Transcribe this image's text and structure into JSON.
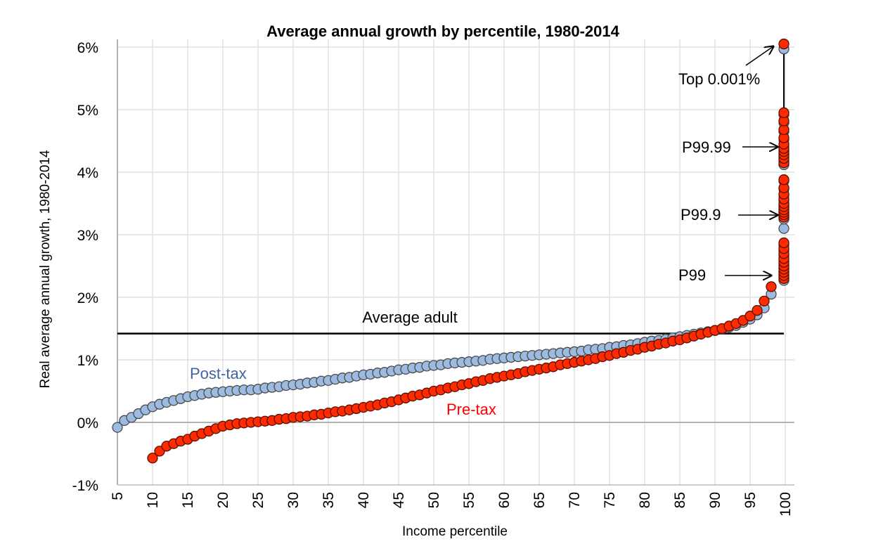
{
  "chart_data": {
    "type": "scatter",
    "title": "Average annual growth by percentile, 1980-2014",
    "xlabel": "Income percentile",
    "ylabel": "Real average annual growth, 1980-2014",
    "xlim": [
      5,
      100
    ],
    "ylim": [
      -1,
      6
    ],
    "grid": true,
    "x_ticks": [
      "5",
      "10",
      "15",
      "20",
      "25",
      "30",
      "35",
      "40",
      "45",
      "50",
      "55",
      "60",
      "65",
      "70",
      "75",
      "80",
      "85",
      "90",
      "95",
      "100"
    ],
    "y_ticks": [
      "-1%",
      "0%",
      "1%",
      "2%",
      "3%",
      "4%",
      "5%",
      "6%"
    ],
    "colors": {
      "post_tax": "#9dbbe0",
      "pre_tax": "#ff2a00",
      "post_tax_label": "#3f64a0",
      "pre_tax_label": "#ff0000"
    },
    "series": [
      {
        "name": "Post-tax",
        "x_start": 5,
        "values": [
          -0.08,
          0.03,
          0.08,
          0.14,
          0.2,
          0.25,
          0.29,
          0.32,
          0.35,
          0.38,
          0.41,
          0.43,
          0.45,
          0.47,
          0.48,
          0.49,
          0.5,
          0.51,
          0.52,
          0.52,
          0.53,
          0.55,
          0.56,
          0.57,
          0.59,
          0.6,
          0.61,
          0.63,
          0.64,
          0.66,
          0.67,
          0.69,
          0.71,
          0.72,
          0.74,
          0.76,
          0.77,
          0.79,
          0.8,
          0.82,
          0.84,
          0.85,
          0.87,
          0.88,
          0.9,
          0.91,
          0.92,
          0.94,
          0.95,
          0.96,
          0.97,
          0.98,
          0.99,
          1.01,
          1.02,
          1.03,
          1.04,
          1.05,
          1.06,
          1.07,
          1.08,
          1.09,
          1.1,
          1.11,
          1.12,
          1.13,
          1.14,
          1.16,
          1.17,
          1.18,
          1.2,
          1.21,
          1.23,
          1.24,
          1.26,
          1.28,
          1.3,
          1.31,
          1.33,
          1.35,
          1.37,
          1.39,
          1.41,
          1.43,
          1.45,
          1.47,
          1.49,
          1.52,
          1.55,
          1.6,
          1.65,
          1.72,
          1.83,
          2.05
        ],
        "top_fractiles": [
          2.27,
          2.32,
          2.37,
          2.42,
          2.47,
          2.53,
          2.59,
          2.67,
          2.75,
          2.84,
          3.1,
          3.25,
          3.3,
          3.34,
          3.38,
          3.43,
          3.48,
          3.55,
          3.63,
          3.73,
          3.86,
          4.12,
          4.19,
          4.25,
          4.3,
          4.35,
          4.42,
          4.52,
          4.65,
          4.79,
          4.92,
          5.97
        ]
      },
      {
        "name": "Pre-tax",
        "x_start": 10,
        "values": [
          -0.57,
          -0.46,
          -0.38,
          -0.34,
          -0.3,
          -0.27,
          -0.22,
          -0.18,
          -0.14,
          -0.1,
          -0.06,
          -0.04,
          -0.02,
          -0.01,
          0.0,
          0.01,
          0.02,
          0.03,
          0.05,
          0.06,
          0.08,
          0.09,
          0.1,
          0.12,
          0.13,
          0.15,
          0.17,
          0.18,
          0.2,
          0.22,
          0.24,
          0.26,
          0.28,
          0.31,
          0.33,
          0.36,
          0.39,
          0.42,
          0.44,
          0.47,
          0.5,
          0.52,
          0.55,
          0.57,
          0.6,
          0.62,
          0.65,
          0.67,
          0.7,
          0.72,
          0.74,
          0.76,
          0.78,
          0.81,
          0.83,
          0.85,
          0.87,
          0.89,
          0.92,
          0.94,
          0.96,
          0.98,
          1.0,
          1.02,
          1.05,
          1.07,
          1.1,
          1.12,
          1.15,
          1.17,
          1.2,
          1.22,
          1.25,
          1.27,
          1.3,
          1.32,
          1.35,
          1.38,
          1.41,
          1.44,
          1.47,
          1.5,
          1.54,
          1.58,
          1.63,
          1.7,
          1.79,
          1.94,
          2.17
        ],
        "top_fractiles": [
          2.3,
          2.35,
          2.4,
          2.45,
          2.5,
          2.56,
          2.62,
          2.7,
          2.78,
          2.87,
          3.28,
          3.32,
          3.36,
          3.4,
          3.45,
          3.5,
          3.57,
          3.65,
          3.75,
          3.88,
          4.15,
          4.22,
          4.28,
          4.33,
          4.38,
          4.45,
          4.55,
          4.68,
          4.82,
          4.95,
          6.05
        ]
      }
    ],
    "reference_line": {
      "label": "Average adult",
      "value": 1.42
    },
    "annotations": {
      "top": "Top 0.001%",
      "p9999": "P99.99",
      "p999": "P99.9",
      "p99": "P99"
    }
  }
}
